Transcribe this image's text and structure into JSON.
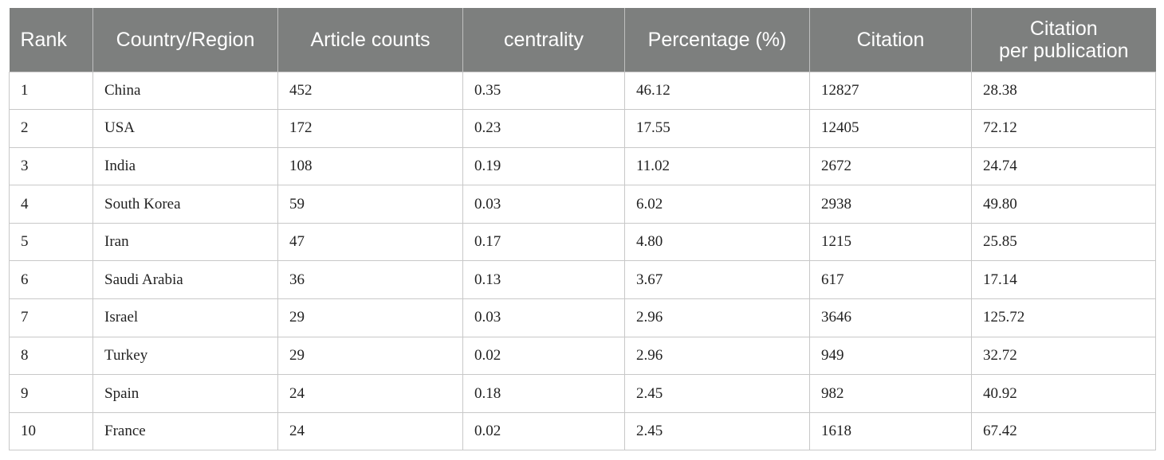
{
  "table": {
    "headers": [
      "Rank",
      "Country/Region",
      "Article counts",
      "centrality",
      "Percentage (%)",
      "Citation",
      "Citation\nper publication"
    ],
    "rows": [
      [
        "1",
        "China",
        "452",
        "0.35",
        "46.12",
        "12827",
        "28.38"
      ],
      [
        "2",
        "USA",
        "172",
        "0.23",
        "17.55",
        "12405",
        "72.12"
      ],
      [
        "3",
        "India",
        "108",
        "0.19",
        "11.02",
        "2672",
        "24.74"
      ],
      [
        "4",
        "South Korea",
        "59",
        "0.03",
        "6.02",
        "2938",
        "49.80"
      ],
      [
        "5",
        "Iran",
        "47",
        "0.17",
        "4.80",
        "1215",
        "25.85"
      ],
      [
        "6",
        "Saudi Arabia",
        "36",
        "0.13",
        "3.67",
        "617",
        "17.14"
      ],
      [
        "7",
        "Israel",
        "29",
        "0.03",
        "2.96",
        "3646",
        "125.72"
      ],
      [
        "8",
        "Turkey",
        "29",
        "0.02",
        "2.96",
        "949",
        "32.72"
      ],
      [
        "9",
        "Spain",
        "24",
        "0.18",
        "2.45",
        "982",
        "40.92"
      ],
      [
        "10",
        "France",
        "24",
        "0.02",
        "2.45",
        "1618",
        "67.42"
      ]
    ]
  }
}
